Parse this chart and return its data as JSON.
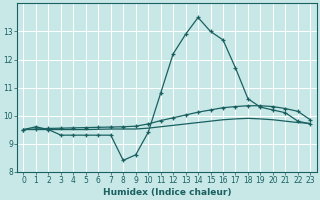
{
  "xlabel": "Humidex (Indice chaleur)",
  "xlim": [
    -0.5,
    23.5
  ],
  "ylim": [
    8,
    14
  ],
  "yticks": [
    8,
    9,
    10,
    11,
    12,
    13
  ],
  "xticks": [
    0,
    1,
    2,
    3,
    4,
    5,
    6,
    7,
    8,
    9,
    10,
    11,
    12,
    13,
    14,
    15,
    16,
    17,
    18,
    19,
    20,
    21,
    22,
    23
  ],
  "bg_color": "#c8e8e8",
  "grid_color": "#ffffff",
  "line_color": "#1a6060",
  "line1_x": [
    0,
    1,
    2,
    3,
    4,
    5,
    6,
    7,
    8,
    9,
    10,
    11,
    12,
    13,
    14,
    15,
    16,
    17,
    18,
    19,
    20,
    21,
    22,
    23
  ],
  "line1_y": [
    9.5,
    9.6,
    9.5,
    9.3,
    9.3,
    9.3,
    9.3,
    9.3,
    8.4,
    8.6,
    9.4,
    10.8,
    12.2,
    12.9,
    13.5,
    13.0,
    12.7,
    11.7,
    10.6,
    10.3,
    10.2,
    10.1,
    9.8,
    9.7
  ],
  "line2_x": [
    0,
    1,
    2,
    3,
    4,
    5,
    6,
    7,
    8,
    9,
    10,
    11,
    12,
    13,
    14,
    15,
    16,
    17,
    18,
    19,
    20,
    21,
    22,
    23
  ],
  "line2_y": [
    9.5,
    9.52,
    9.54,
    9.55,
    9.56,
    9.57,
    9.58,
    9.59,
    9.6,
    9.62,
    9.7,
    9.82,
    9.92,
    10.02,
    10.12,
    10.2,
    10.28,
    10.32,
    10.35,
    10.35,
    10.32,
    10.25,
    10.15,
    9.85
  ],
  "line3_x": [
    0,
    1,
    2,
    3,
    4,
    5,
    6,
    7,
    8,
    9,
    10,
    11,
    12,
    13,
    14,
    15,
    16,
    17,
    18,
    19,
    20,
    21,
    22,
    23
  ],
  "line3_y": [
    9.5,
    9.5,
    9.5,
    9.5,
    9.5,
    9.5,
    9.51,
    9.52,
    9.52,
    9.52,
    9.55,
    9.6,
    9.65,
    9.7,
    9.75,
    9.8,
    9.85,
    9.88,
    9.9,
    9.88,
    9.85,
    9.8,
    9.75,
    9.72
  ]
}
